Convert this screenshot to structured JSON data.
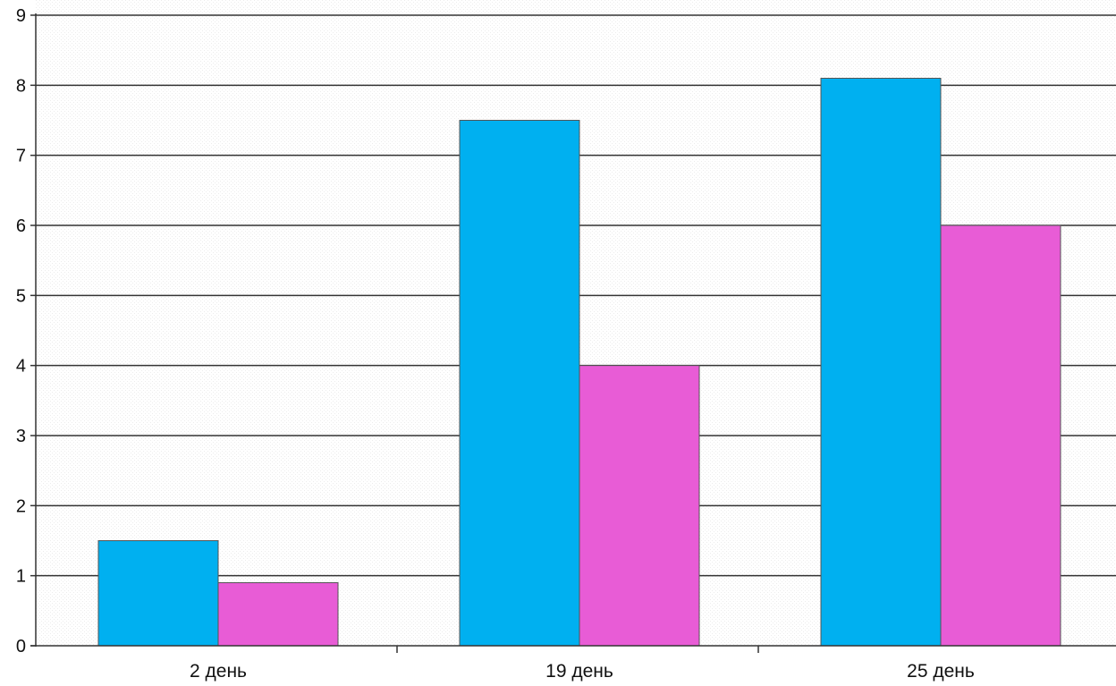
{
  "chart_data": {
    "type": "bar",
    "title": "",
    "xlabel": "",
    "ylabel": "",
    "categories": [
      "2 день",
      "19 день",
      "25 день"
    ],
    "series": [
      {
        "values": [
          1.5,
          7.5,
          8.1
        ],
        "color": "#00b0f0"
      },
      {
        "values": [
          0.9,
          4.0,
          6.0
        ],
        "color": "#e85cd6"
      }
    ],
    "ylim": [
      0,
      9
    ],
    "yticks": [
      0,
      1,
      2,
      3,
      4,
      5,
      6,
      7,
      8,
      9
    ],
    "grid": true,
    "legend": "none"
  }
}
